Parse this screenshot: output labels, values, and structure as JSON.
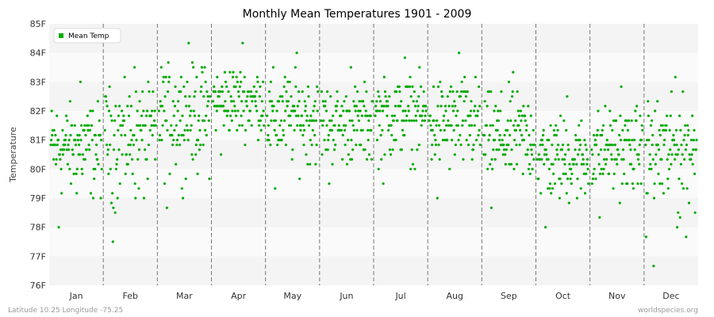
{
  "chart_data": {
    "type": "scatter",
    "title": "Monthly Mean Temperatures 1901 - 2009",
    "ylabel": "Temperature",
    "xlabel": "",
    "categories": [
      "Jan",
      "Feb",
      "Mar",
      "Apr",
      "May",
      "Jun",
      "Jul",
      "Aug",
      "Sep",
      "Oct",
      "Nov",
      "Dec"
    ],
    "y_ticks": [
      "76F",
      "77F",
      "78F",
      "79F",
      "80F",
      "81F",
      "82F",
      "83F",
      "84F",
      "85F"
    ],
    "ylim": [
      76,
      85
    ],
    "y_unit": "F",
    "grid": "horizontal bands, dashed vertical month separators",
    "legend_position": "top-left",
    "series": [
      {
        "name": "Mean Temp",
        "color": "#00aa00",
        "monthly_summary": [
          {
            "month": "Jan",
            "min": 78.0,
            "max": 83.0,
            "median": 80.8
          },
          {
            "month": "Feb",
            "min": 77.5,
            "max": 83.5,
            "median": 81.3
          },
          {
            "month": "Mar",
            "min": 78.7,
            "max": 84.3,
            "median": 82.0
          },
          {
            "month": "Apr",
            "min": 80.5,
            "max": 84.3,
            "median": 82.3
          },
          {
            "month": "May",
            "min": 79.3,
            "max": 84.0,
            "median": 81.8
          },
          {
            "month": "Jun",
            "min": 79.5,
            "max": 83.5,
            "median": 81.6
          },
          {
            "month": "Jul",
            "min": 79.5,
            "max": 83.8,
            "median": 81.9
          },
          {
            "month": "Aug",
            "min": 79.0,
            "max": 84.0,
            "median": 81.6
          },
          {
            "month": "Sep",
            "min": 78.7,
            "max": 83.4,
            "median": 81.1
          },
          {
            "month": "Oct",
            "min": 78.0,
            "max": 82.5,
            "median": 80.4
          },
          {
            "month": "Nov",
            "min": 78.3,
            "max": 82.8,
            "median": 80.7
          },
          {
            "month": "Dec",
            "min": 76.6,
            "max": 83.2,
            "median": 80.8
          }
        ]
      }
    ]
  },
  "footer": {
    "left": "Latitude 10.25 Longitude -75.25",
    "right": "worldspecies.org"
  }
}
